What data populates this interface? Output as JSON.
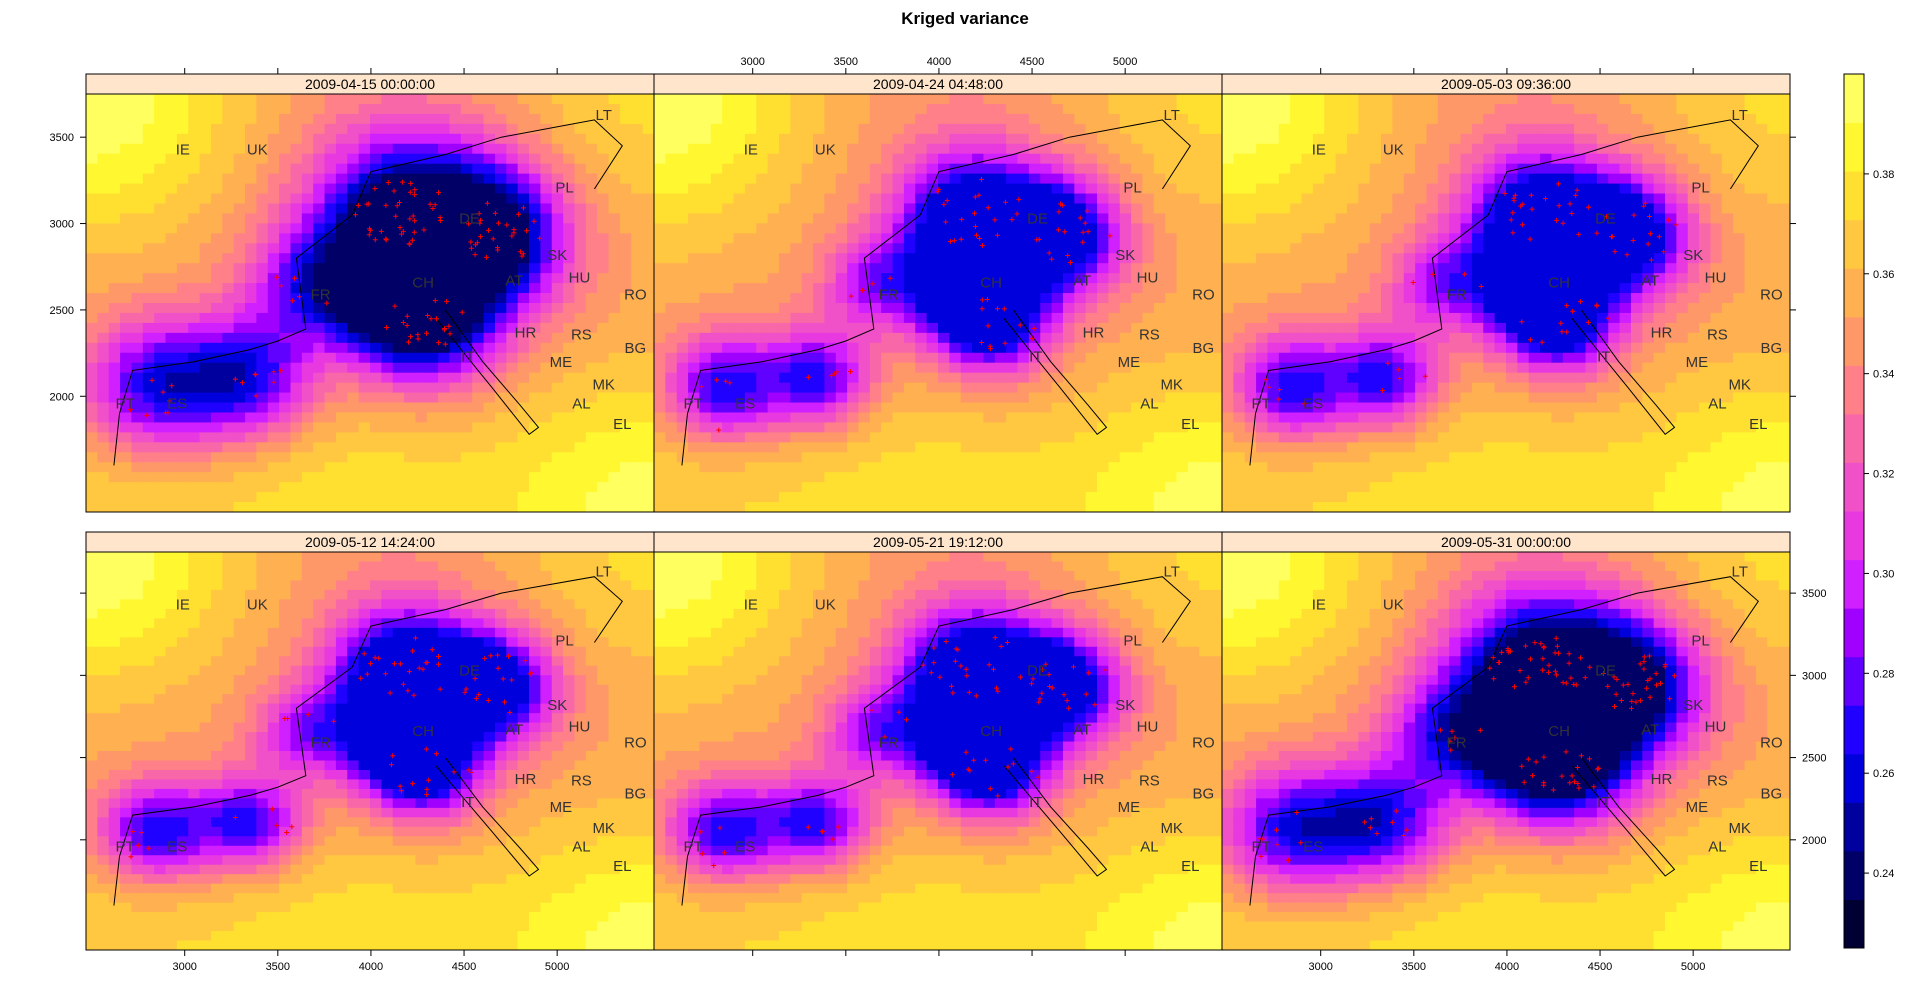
{
  "chart_data": {
    "type": "heatmap",
    "title": "Kriged variance",
    "panels": [
      {
        "label": "2009-04-15 00:00:00",
        "core_level": 0.238,
        "extent": 1.25,
        "stations": "dense"
      },
      {
        "label": "2009-04-24 04:48:00",
        "core_level": 0.262,
        "extent": 1.0,
        "stations": "medium"
      },
      {
        "label": "2009-05-03 09:36:00",
        "core_level": 0.262,
        "extent": 1.0,
        "stations": "medium"
      },
      {
        "label": "2009-05-12 14:24:00",
        "core_level": 0.262,
        "extent": 1.0,
        "stations": "medium"
      },
      {
        "label": "2009-05-21 19:12:00",
        "core_level": 0.262,
        "extent": 1.0,
        "stations": "medium"
      },
      {
        "label": "2009-05-31 00:00:00",
        "core_level": 0.238,
        "extent": 1.25,
        "stations": "dense"
      }
    ],
    "x_ticks": [
      3000,
      3500,
      4000,
      4500,
      5000
    ],
    "y_ticks": [
      2000,
      2500,
      3000,
      3500
    ],
    "xlim": [
      2470,
      5520
    ],
    "ylim": [
      1330,
      3750
    ],
    "colorbar": {
      "ticks": [
        0.24,
        0.26,
        0.28,
        0.3,
        0.32,
        0.34,
        0.36,
        0.38
      ],
      "range": [
        0.225,
        0.4
      ],
      "colors": [
        "#000033",
        "#000066",
        "#00009F",
        "#0000DC",
        "#2000FF",
        "#6000FF",
        "#A000FF",
        "#D020FF",
        "#E838E0",
        "#F050C8",
        "#F868A8",
        "#FF8088",
        "#FF9868",
        "#FFB050",
        "#FFC840",
        "#FFE030",
        "#FFF830",
        "#FFFF60"
      ]
    },
    "country_labels": [
      "IE",
      "UK",
      "LT",
      "PL",
      "DE",
      "SK",
      "FR",
      "AT",
      "HU",
      "RO",
      "HR",
      "RS",
      "BG",
      "IT",
      "ME",
      "MK",
      "ES",
      "PT",
      "AL",
      "EL",
      "CH"
    ]
  }
}
